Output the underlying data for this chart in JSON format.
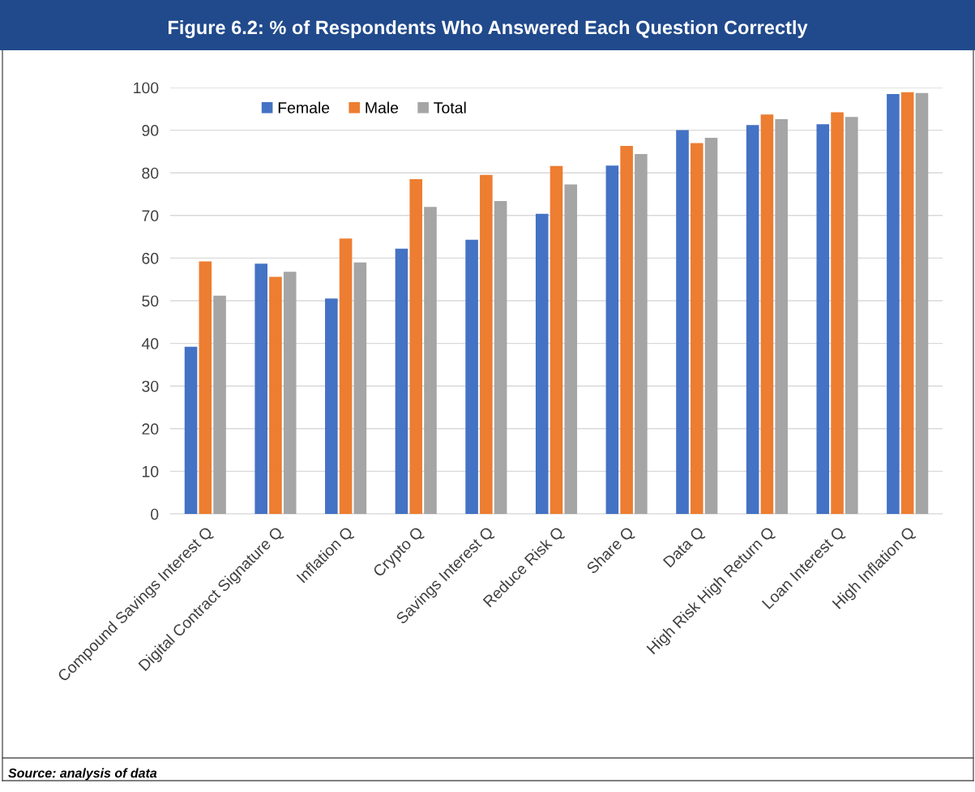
{
  "chart_data": {
    "type": "bar",
    "title": "Figure 6.2: % of Respondents Who Answered Each Question Correctly",
    "categories": [
      "Compound Savings Interest Q",
      "Digital Contract Signature Q",
      "Inflation Q",
      "Crypto Q",
      "Savings Interest Q",
      "Reduce Risk Q",
      "Share Q",
      "Data Q",
      "High Risk High Return Q",
      "Loan Interest Q",
      "High Inflation Q"
    ],
    "series": [
      {
        "name": "Female",
        "color": "#4472c4",
        "values": [
          39.2,
          58.7,
          50.5,
          62.2,
          64.3,
          70.4,
          81.7,
          90.0,
          91.2,
          91.4,
          98.5
        ]
      },
      {
        "name": "Male",
        "color": "#ed7d31",
        "values": [
          59.2,
          55.6,
          64.6,
          78.5,
          79.5,
          81.6,
          86.3,
          87.0,
          93.7,
          94.2,
          98.9
        ]
      },
      {
        "name": "Total",
        "color": "#a5a5a5",
        "values": [
          51.2,
          56.8,
          59.0,
          72.0,
          73.4,
          77.3,
          84.4,
          88.2,
          92.6,
          93.1,
          98.7
        ]
      }
    ],
    "ylim": [
      0,
      100
    ],
    "yticks": [
      0,
      10,
      20,
      30,
      40,
      50,
      60,
      70,
      80,
      90,
      100
    ],
    "grid": "y",
    "legend": "top left",
    "annotations": [
      "Source: analysis of data"
    ]
  }
}
